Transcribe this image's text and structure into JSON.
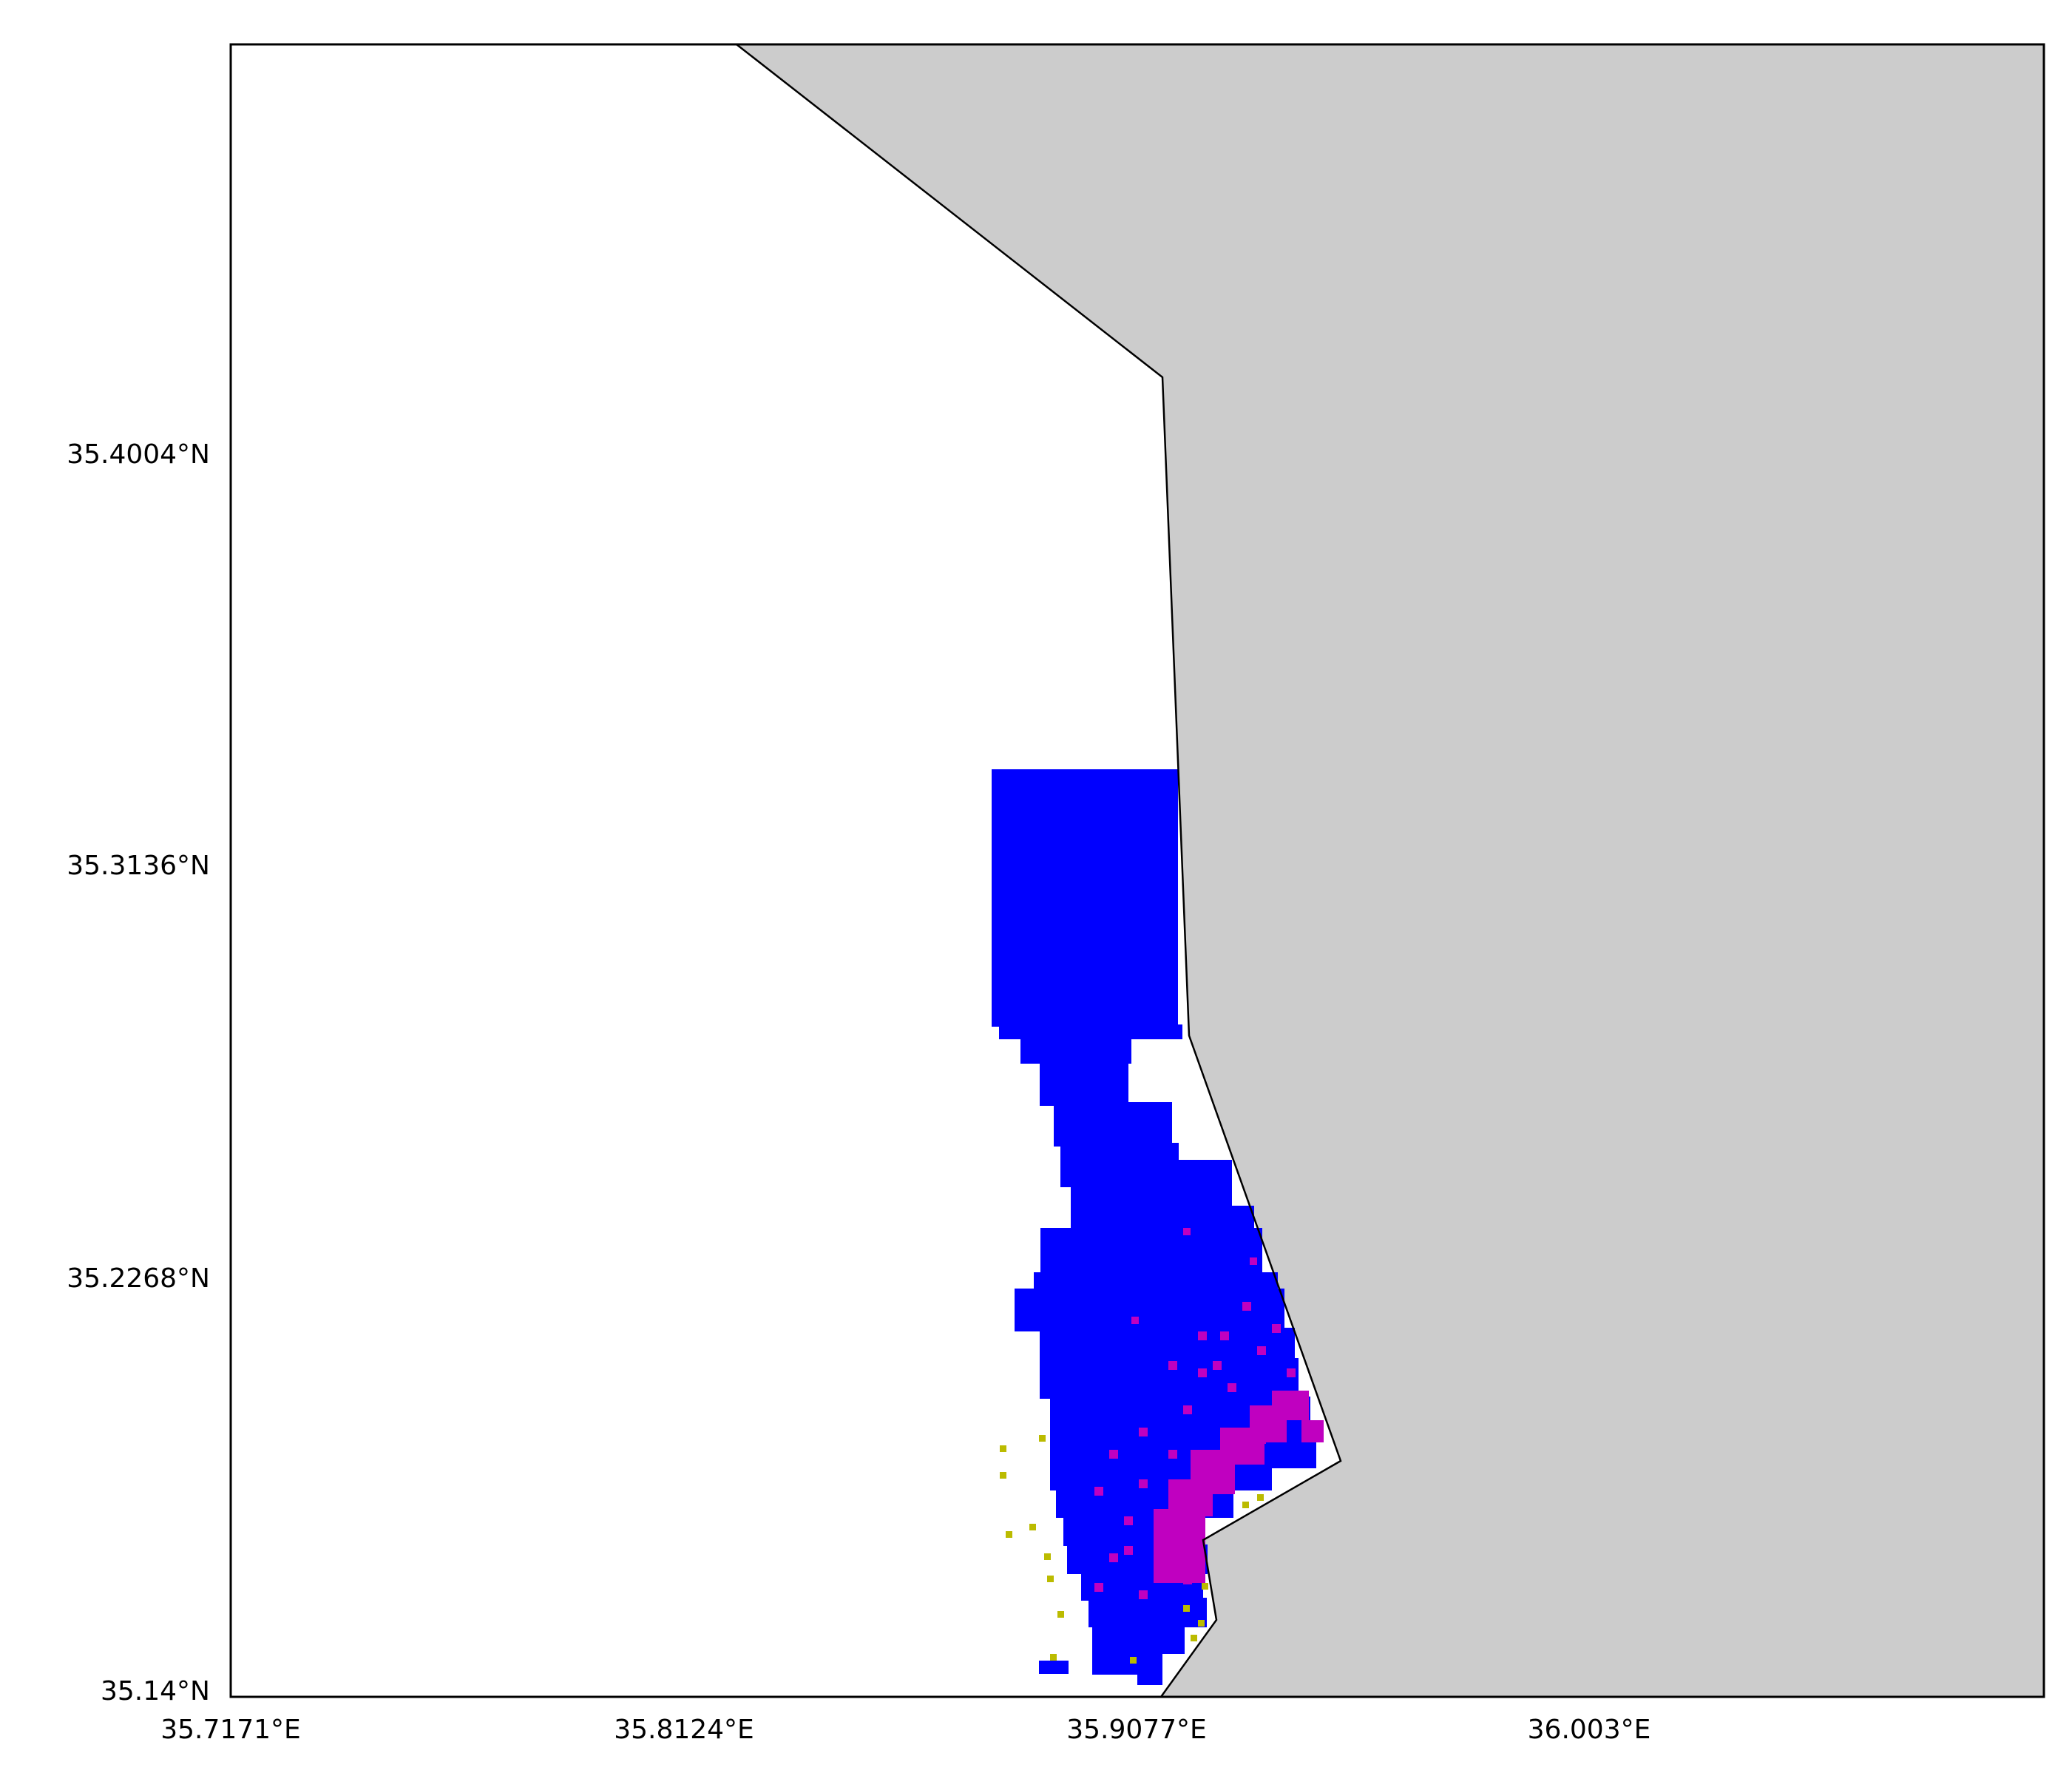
{
  "map": {
    "x_ticks": [
      {
        "label": "35.7171°E",
        "value": 35.7171
      },
      {
        "label": "35.8124°E",
        "value": 35.8124
      },
      {
        "label": "35.9077°E",
        "value": 35.9077
      },
      {
        "label": "36.003°E",
        "value": 36.003
      }
    ],
    "y_ticks": [
      {
        "label": "35.4004°N",
        "value": 35.4004
      },
      {
        "label": "35.3136°N",
        "value": 35.3136
      },
      {
        "label": "35.2268°N",
        "value": 35.2268
      },
      {
        "label": "35.14°N",
        "value": 35.14
      }
    ],
    "colors": {
      "land": "#cccccc",
      "sea": "#ffffff",
      "coastline": "#000000",
      "class_low": "#0000ff",
      "class_mid": "#c000c0",
      "class_high": "#bbbb00"
    }
  }
}
